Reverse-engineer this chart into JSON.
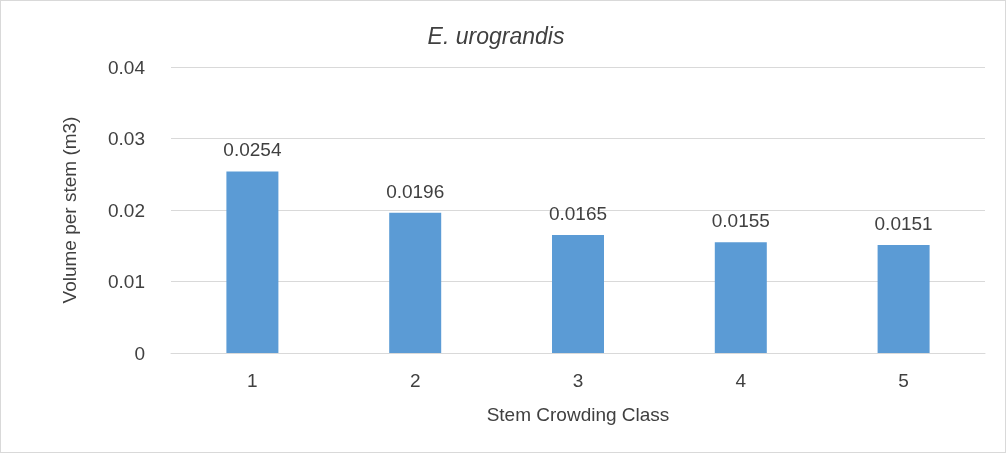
{
  "chart_data": {
    "type": "bar",
    "title": "E. urograndis",
    "xlabel": "Stem Crowding Class",
    "ylabel": "Volume per stem (m3)",
    "categories": [
      "1",
      "2",
      "3",
      "4",
      "5"
    ],
    "values": [
      0.0254,
      0.0196,
      0.0165,
      0.0155,
      0.0151
    ],
    "color": "#5b9bd5",
    "ylim": [
      0,
      0.04
    ],
    "yticks": [
      0,
      0.01,
      0.02,
      0.03,
      0.04
    ],
    "grid": "y",
    "data_labels": true
  }
}
